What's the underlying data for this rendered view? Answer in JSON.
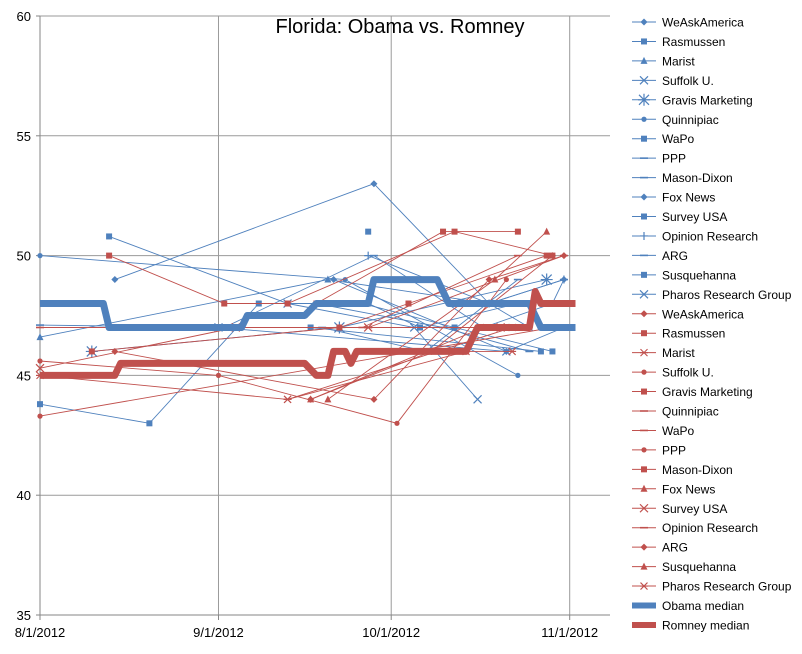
{
  "chart_data": {
    "type": "line",
    "title": "Florida: Obama vs. Romney",
    "xlabel": "",
    "ylabel": "",
    "ylim": [
      35,
      60
    ],
    "yticks": [
      "35",
      "40",
      "45",
      "50",
      "55",
      "60"
    ],
    "xlim": [
      "2012-08-01",
      "2012-11-08"
    ],
    "xticks": [
      {
        "label": "8/1/2012",
        "date": "2012-08-01"
      },
      {
        "label": "9/1/2012",
        "date": "2012-09-01"
      },
      {
        "label": "10/1/2012",
        "date": "2012-10-01"
      },
      {
        "label": "11/1/2012",
        "date": "2012-11-01"
      }
    ],
    "grid": true,
    "legend_position": "right",
    "colors": {
      "obama": "#4f81bd",
      "romney": "#c0504d"
    },
    "series": [
      {
        "name": "WeAskAmerica",
        "party": "obama",
        "marker": "diamond",
        "points": [
          [
            "2012-08-14",
            49
          ],
          [
            "2012-09-28",
            53
          ],
          [
            "2012-10-18",
            48
          ],
          [
            "2012-10-31",
            49
          ]
        ]
      },
      {
        "name": "Rasmussen",
        "party": "obama",
        "marker": "square",
        "points": [
          [
            "2012-08-13",
            50.8
          ],
          [
            "2012-09-13",
            48
          ],
          [
            "2012-09-26",
            48
          ],
          [
            "2012-10-12",
            47
          ],
          [
            "2012-10-29",
            46
          ]
        ]
      },
      {
        "name": "Marist",
        "party": "obama",
        "marker": "triangle",
        "points": [
          [
            "2012-08-01",
            46.6
          ],
          [
            "2012-09-20",
            49
          ],
          [
            "2012-10-18",
            48
          ],
          [
            "2012-10-25",
            47
          ]
        ]
      },
      {
        "name": "Suffolk U.",
        "party": "obama",
        "marker": "x",
        "points": [
          [
            "2012-09-01",
            47
          ],
          [
            "2012-10-21",
            46
          ]
        ]
      },
      {
        "name": "Gravis Marketing",
        "party": "obama",
        "marker": "star",
        "points": [
          [
            "2012-08-10",
            46
          ],
          [
            "2012-09-22",
            47
          ],
          [
            "2012-10-28",
            49
          ]
        ]
      },
      {
        "name": "Quinnipiac",
        "party": "obama",
        "marker": "dot",
        "points": [
          [
            "2012-08-01",
            50
          ],
          [
            "2012-09-23",
            49
          ],
          [
            "2012-10-23",
            45
          ]
        ]
      },
      {
        "name": "WaPo",
        "party": "obama",
        "marker": "square",
        "points": [
          [
            "2012-09-27",
            51
          ]
        ]
      },
      {
        "name": "PPP",
        "party": "obama",
        "marker": "dash",
        "points": [
          [
            "2012-08-01",
            47.1
          ],
          [
            "2012-09-02",
            47
          ],
          [
            "2012-09-28",
            50
          ],
          [
            "2012-10-17",
            47
          ],
          [
            "2012-10-29",
            48
          ],
          [
            "2012-10-31",
            49
          ]
        ]
      },
      {
        "name": "Mason-Dixon",
        "party": "obama",
        "marker": "dash",
        "points": [
          [
            "2012-09-18",
            48
          ],
          [
            "2012-10-10",
            47
          ],
          [
            "2012-10-25",
            46
          ]
        ]
      },
      {
        "name": "Fox News",
        "party": "obama",
        "marker": "diamond",
        "points": [
          [
            "2012-09-21",
            49
          ],
          [
            "2012-10-21",
            46
          ],
          [
            "2012-10-31",
            47
          ]
        ]
      },
      {
        "name": "Survey USA",
        "party": "obama",
        "marker": "square",
        "points": [
          [
            "2012-08-01",
            43.8
          ],
          [
            "2012-08-20",
            43
          ],
          [
            "2012-09-08",
            48
          ],
          [
            "2012-09-27",
            48
          ],
          [
            "2012-10-06",
            47
          ],
          [
            "2012-10-23",
            48
          ]
        ]
      },
      {
        "name": "Opinion Research",
        "party": "obama",
        "marker": "plus",
        "points": [
          [
            "2012-09-27",
            50
          ],
          [
            "2012-10-18",
            48
          ],
          [
            "2012-10-31",
            49
          ]
        ]
      },
      {
        "name": "ARG",
        "party": "obama",
        "marker": "dash",
        "points": [
          [
            "2012-09-19",
            47
          ],
          [
            "2012-10-07",
            46
          ],
          [
            "2012-10-23",
            49
          ]
        ]
      },
      {
        "name": "Susquehanna",
        "party": "obama",
        "marker": "square",
        "points": [
          [
            "2012-09-17",
            47
          ],
          [
            "2012-10-27",
            46
          ]
        ]
      },
      {
        "name": "Pharos Research Group",
        "party": "obama",
        "marker": "x",
        "points": [
          [
            "2012-09-13",
            48
          ],
          [
            "2012-10-05",
            47
          ],
          [
            "2012-10-16",
            44
          ]
        ]
      },
      {
        "name": "WeAskAmerica",
        "party": "romney",
        "marker": "diamond",
        "points": [
          [
            "2012-08-14",
            46
          ],
          [
            "2012-09-28",
            44
          ],
          [
            "2012-10-18",
            49
          ],
          [
            "2012-10-31",
            50
          ]
        ]
      },
      {
        "name": "Rasmussen",
        "party": "romney",
        "marker": "square",
        "points": [
          [
            "2012-08-13",
            50
          ],
          [
            "2012-09-02",
            48
          ],
          [
            "2012-09-13",
            48
          ],
          [
            "2012-10-12",
            51
          ],
          [
            "2012-10-29",
            50
          ]
        ]
      },
      {
        "name": "Marist",
        "party": "romney",
        "marker": "asterisk",
        "points": [
          [
            "2012-08-01",
            45
          ],
          [
            "2012-09-13",
            44
          ],
          [
            "2012-10-14",
            46
          ],
          [
            "2012-10-22",
            46
          ]
        ]
      },
      {
        "name": "Suffolk U.",
        "party": "romney",
        "marker": "dot",
        "points": [
          [
            "2012-08-01",
            43.3
          ],
          [
            "2012-10-29",
            47
          ]
        ]
      },
      {
        "name": "Gravis Marketing",
        "party": "romney",
        "marker": "square",
        "points": [
          [
            "2012-08-10",
            46
          ],
          [
            "2012-09-22",
            47
          ],
          [
            "2012-10-04",
            48
          ],
          [
            "2012-10-28",
            50
          ]
        ]
      },
      {
        "name": "Quinnipiac",
        "party": "romney",
        "marker": "dash",
        "points": [
          [
            "2012-09-26",
            47
          ],
          [
            "2012-10-23",
            50
          ]
        ]
      },
      {
        "name": "WaPo",
        "party": "romney",
        "marker": "dash",
        "points": [
          [
            "2012-08-01",
            47
          ],
          [
            "2012-09-27",
            47
          ]
        ]
      },
      {
        "name": "PPP",
        "party": "romney",
        "marker": "dot",
        "points": [
          [
            "2012-08-01",
            45.6
          ],
          [
            "2012-09-01",
            45
          ],
          [
            "2012-10-02",
            43
          ],
          [
            "2012-10-21",
            49
          ]
        ]
      },
      {
        "name": "Mason-Dixon",
        "party": "romney",
        "marker": "square",
        "points": [
          [
            "2012-09-18",
            48
          ],
          [
            "2012-10-10",
            51
          ],
          [
            "2012-10-23",
            51
          ]
        ]
      },
      {
        "name": "Fox News",
        "party": "romney",
        "marker": "triangle",
        "points": [
          [
            "2012-09-20",
            44
          ],
          [
            "2012-10-19",
            49
          ],
          [
            "2012-10-28",
            51
          ]
        ]
      },
      {
        "name": "Survey USA",
        "party": "romney",
        "marker": "x",
        "points": [
          [
            "2012-08-01",
            45.3
          ],
          [
            "2012-09-04",
            47
          ],
          [
            "2012-09-27",
            47
          ],
          [
            "2012-10-20",
            47
          ]
        ]
      },
      {
        "name": "Opinion Research",
        "party": "romney",
        "marker": "dash",
        "points": [
          [
            "2012-09-27",
            47
          ],
          [
            "2012-10-31",
            50
          ]
        ]
      },
      {
        "name": "ARG",
        "party": "romney",
        "marker": "diamond",
        "points": [
          [
            "2012-09-17",
            44
          ],
          [
            "2012-10-08",
            46
          ],
          [
            "2012-10-29",
            50
          ]
        ]
      },
      {
        "name": "Susquehanna",
        "party": "romney",
        "marker": "triangle",
        "points": [
          [
            "2012-09-17",
            44
          ],
          [
            "2012-10-17",
            47
          ]
        ]
      },
      {
        "name": "Pharos Research Group",
        "party": "romney",
        "marker": "asterisk",
        "points": [
          [
            "2012-09-13",
            44
          ],
          [
            "2012-10-22",
            47
          ]
        ]
      }
    ],
    "medians": [
      {
        "name": "Obama median",
        "party": "obama",
        "points": [
          [
            "2012-08-01",
            48
          ],
          [
            "2012-08-12",
            48
          ],
          [
            "2012-08-13",
            47
          ],
          [
            "2012-09-05",
            47
          ],
          [
            "2012-09-06",
            47.5
          ],
          [
            "2012-09-16",
            47.5
          ],
          [
            "2012-09-18",
            48
          ],
          [
            "2012-09-27",
            48
          ],
          [
            "2012-09-28",
            49
          ],
          [
            "2012-10-09",
            49
          ],
          [
            "2012-10-11",
            48
          ],
          [
            "2012-10-25",
            48
          ],
          [
            "2012-10-27",
            47
          ],
          [
            "2012-11-02",
            47
          ]
        ]
      },
      {
        "name": "Romney median",
        "party": "romney",
        "points": [
          [
            "2012-08-01",
            45
          ],
          [
            "2012-08-14",
            45
          ],
          [
            "2012-08-15",
            45.5
          ],
          [
            "2012-09-16",
            45.5
          ],
          [
            "2012-09-18",
            45
          ],
          [
            "2012-09-20",
            45
          ],
          [
            "2012-09-21",
            46
          ],
          [
            "2012-09-23",
            46
          ],
          [
            "2012-09-24",
            45.5
          ],
          [
            "2012-09-25",
            46
          ],
          [
            "2012-10-14",
            46
          ],
          [
            "2012-10-16",
            47
          ],
          [
            "2012-10-25",
            47
          ],
          [
            "2012-10-26",
            48.5
          ],
          [
            "2012-10-27",
            48
          ],
          [
            "2012-11-02",
            48
          ]
        ]
      }
    ]
  }
}
